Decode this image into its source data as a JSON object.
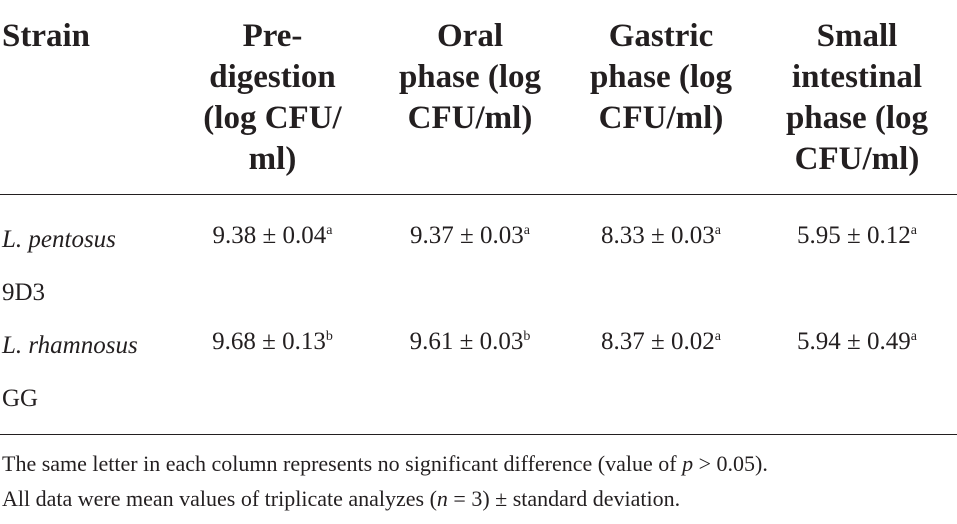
{
  "table": {
    "headers": {
      "strain": "Strain",
      "pre": [
        "Pre-",
        "digestion",
        "(log CFU/",
        "ml)"
      ],
      "oral": [
        "Oral",
        "phase (log",
        "CFU/ml)"
      ],
      "gastric": [
        "Gastric",
        "phase (log",
        "CFU/ml)"
      ],
      "small": [
        "Small",
        "intestinal",
        "phase (log",
        "CFU/ml)"
      ]
    },
    "rows": [
      {
        "strain_italic": "L. pentosus",
        "strain_rest": "9D3",
        "cells": [
          {
            "value": "9.38 ± 0.04",
            "sup": "a"
          },
          {
            "value": "9.37 ± 0.03",
            "sup": "a"
          },
          {
            "value": "8.33 ± 0.03",
            "sup": "a"
          },
          {
            "value": "5.95 ± 0.12",
            "sup": "a"
          }
        ]
      },
      {
        "strain_italic": "L. rhamnosus",
        "strain_rest": "GG",
        "cells": [
          {
            "value": "9.68 ± 0.13",
            "sup": "b"
          },
          {
            "value": "9.61 ± 0.03",
            "sup": "b"
          },
          {
            "value": "8.37 ± 0.02",
            "sup": "a"
          },
          {
            "value": "5.94 ± 0.49",
            "sup": "a"
          }
        ]
      }
    ]
  },
  "footnotes": {
    "line1_a": "The same letter in each column represents no significant difference (value of ",
    "line1_p": "p",
    "line1_b": " > 0.05).",
    "line2_a": "All data were mean values of triplicate analyzes (",
    "line2_n": "n",
    "line2_b": " = 3) ± standard deviation."
  }
}
